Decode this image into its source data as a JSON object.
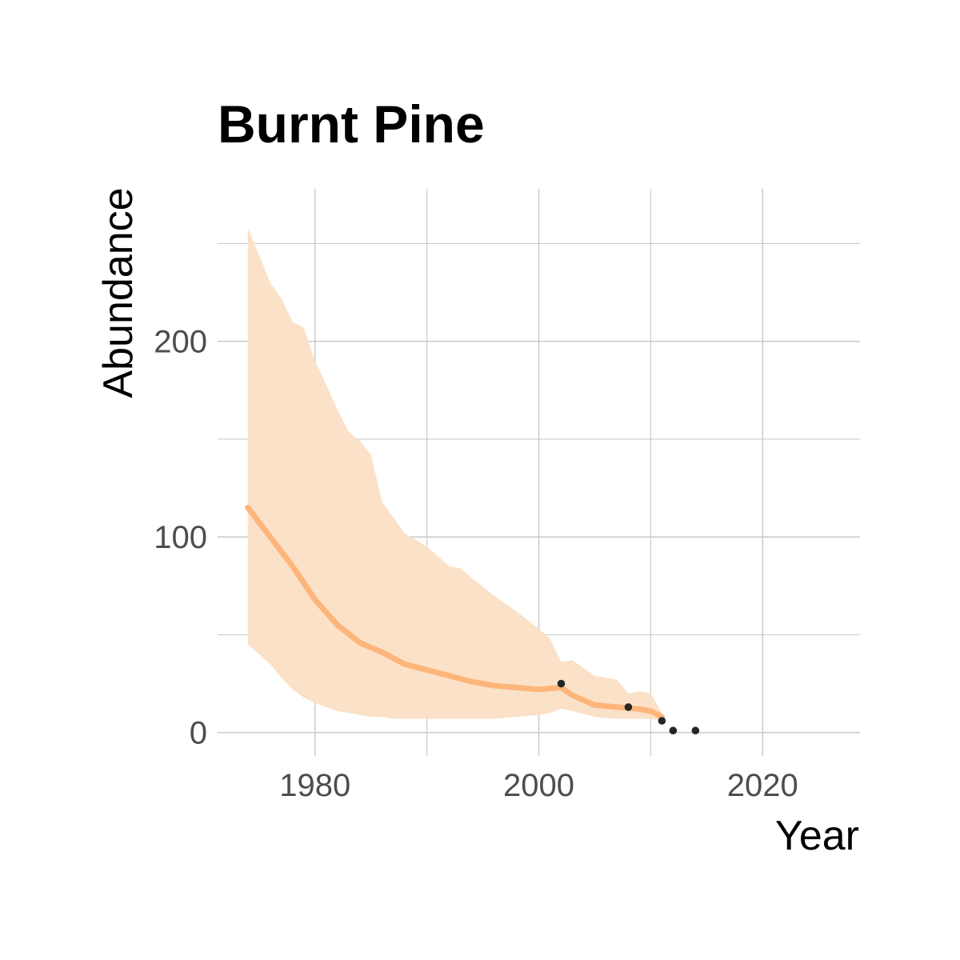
{
  "chart_data": {
    "type": "line",
    "title": "Burnt Pine",
    "xlabel": "Year",
    "ylabel": "Abundance",
    "xlim": [
      1971.3,
      2028.7
    ],
    "ylim": [
      -12,
      278
    ],
    "x_ticks": [
      1980,
      2000,
      2020
    ],
    "x_tick_labels": [
      "1980",
      "2000",
      "2020"
    ],
    "x_minor_ticks": [
      1990,
      2010
    ],
    "y_ticks": [
      0,
      100,
      200
    ],
    "y_tick_labels": [
      "0",
      "100",
      "200"
    ],
    "y_minor_ticks": [
      50,
      150,
      250
    ],
    "grid": true,
    "colors": {
      "line": "#fdb57a",
      "ribbon": "#fbe1c8",
      "points": "#262626"
    },
    "series": [
      {
        "type": "line",
        "x": [
          1974,
          1976,
          1978,
          1980,
          1982,
          1984,
          1986,
          1988,
          1990,
          1992,
          1994,
          1996,
          1998,
          2000,
          2002,
          2003,
          2005,
          2007,
          2009,
          2010,
          2011
        ],
        "y": [
          115,
          100,
          85,
          68,
          55,
          46,
          41,
          35,
          32,
          29,
          26,
          24,
          23,
          22,
          23,
          19,
          14,
          13,
          12,
          11,
          8
        ]
      },
      {
        "type": "band",
        "x": [
          1974,
          1976,
          1977,
          1978,
          1979,
          1980,
          1981,
          1982,
          1983,
          1984,
          1985,
          1986,
          1987,
          1988,
          1990,
          1992,
          1993,
          1994,
          1996,
          1998,
          2000,
          2001,
          2002,
          2003,
          2005,
          2007,
          2008,
          2009,
          2010,
          2011
        ],
        "lower": [
          45,
          35,
          28,
          22,
          18,
          15,
          13,
          11,
          10,
          9,
          8,
          8,
          7,
          7,
          7,
          7,
          7,
          7,
          7,
          8,
          9,
          10,
          12,
          11,
          8,
          7,
          7,
          7,
          7,
          6
        ],
        "upper": [
          258,
          230,
          222,
          210,
          207,
          190,
          178,
          165,
          154,
          149,
          142,
          118,
          110,
          102,
          95,
          85,
          84,
          79,
          70,
          62,
          53,
          48,
          36,
          37,
          29,
          27,
          20,
          21,
          20,
          10
        ]
      },
      {
        "type": "scatter",
        "x": [
          2002,
          2008,
          2011,
          2012,
          2014
        ],
        "y": [
          25,
          13,
          6,
          1,
          1
        ]
      }
    ]
  }
}
